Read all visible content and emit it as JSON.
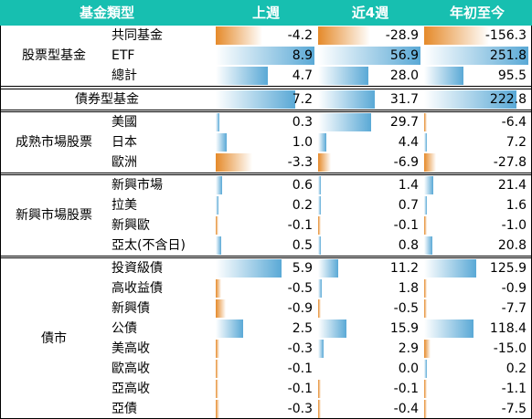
{
  "header": {
    "category": "基金類型",
    "week": "上週",
    "four_weeks": "近4週",
    "ytd": "年初至今"
  },
  "colors": {
    "header_bg": "#17bfb0",
    "positive_bar": "#5aa9d6",
    "negative_bar": "#e58a2a"
  },
  "groups": [
    {
      "name": "股票型基金",
      "rows": [
        {
          "label": "共同基金",
          "week": "-4.2",
          "four_weeks": "-28.9",
          "ytd": "-156.3"
        },
        {
          "label": "ETF",
          "week": "8.9",
          "four_weeks": "56.9",
          "ytd": "251.8"
        },
        {
          "label": "總計",
          "week": "4.7",
          "four_weeks": "28.0",
          "ytd": "95.5"
        }
      ]
    },
    {
      "name": "",
      "rows": [
        {
          "label": "債券型基金",
          "week": "7.2",
          "four_weeks": "31.7",
          "ytd": "222.8"
        }
      ]
    },
    {
      "name": "成熟市場股票",
      "rows": [
        {
          "label": "美國",
          "week": "0.3",
          "four_weeks": "29.7",
          "ytd": "-6.4"
        },
        {
          "label": "日本",
          "week": "1.0",
          "four_weeks": "4.4",
          "ytd": "7.2"
        },
        {
          "label": "歐洲",
          "week": "-3.3",
          "four_weeks": "-6.9",
          "ytd": "-27.8"
        }
      ]
    },
    {
      "name": "新興市場股票",
      "rows": [
        {
          "label": "新興市場",
          "week": "0.6",
          "four_weeks": "1.4",
          "ytd": "21.4"
        },
        {
          "label": "拉美",
          "week": "0.2",
          "four_weeks": "0.7",
          "ytd": "1.6"
        },
        {
          "label": "新興歐",
          "week": "-0.1",
          "four_weeks": "-0.1",
          "ytd": "-1.0"
        },
        {
          "label": "亞太(不含日)",
          "week": "0.5",
          "four_weeks": "0.8",
          "ytd": "20.8"
        }
      ]
    },
    {
      "name": "債市",
      "rows": [
        {
          "label": "投資級債",
          "week": "5.9",
          "four_weeks": "11.2",
          "ytd": "125.9"
        },
        {
          "label": "高收益債",
          "week": "-0.5",
          "four_weeks": "1.8",
          "ytd": "-0.9"
        },
        {
          "label": "新興債",
          "week": "-0.9",
          "four_weeks": "-0.5",
          "ytd": "-7.7"
        },
        {
          "label": "公債",
          "week": "2.5",
          "four_weeks": "15.9",
          "ytd": "118.4"
        },
        {
          "label": "美高收",
          "week": "-0.3",
          "four_weeks": "2.9",
          "ytd": "-15.0"
        },
        {
          "label": "歐高收",
          "week": "-0.1",
          "four_weeks": "0.0",
          "ytd": "0.2"
        },
        {
          "label": "亞高收",
          "week": "-0.1",
          "four_weeks": "-0.1",
          "ytd": "-1.1"
        },
        {
          "label": "亞債",
          "week": "-0.3",
          "four_weeks": "-0.4",
          "ytd": "-7.5"
        }
      ]
    }
  ]
}
